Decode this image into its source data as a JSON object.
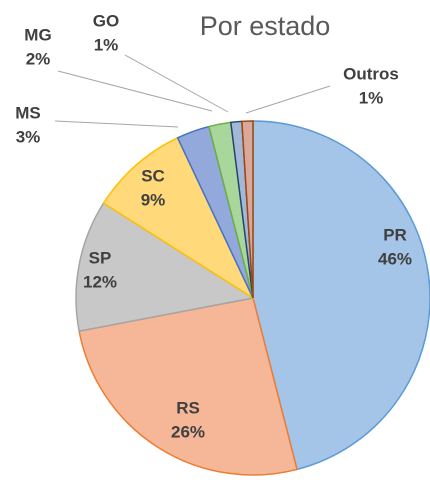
{
  "chart_data": {
    "type": "pie",
    "title": "Por estado",
    "categories": [
      "PR",
      "RS",
      "SP",
      "SC",
      "MS",
      "MG",
      "GO",
      "Outros"
    ],
    "values": [
      46,
      26,
      12,
      9,
      3,
      2,
      1,
      1
    ],
    "value_labels": [
      "46%",
      "26%",
      "12%",
      "9%",
      "3%",
      "2%",
      "1%",
      "1%"
    ],
    "colors": [
      "#a4c4e8",
      "#f6b799",
      "#c8c8c8",
      "#ffd97a",
      "#93a9dc",
      "#a9d69a",
      "#a3b8d6",
      "#d9a89b"
    ],
    "edge_colors": [
      "#5b9bd5",
      "#ed7d31",
      "#a5a5a5",
      "#ffc000",
      "#4472c4",
      "#70ad47",
      "#264478",
      "#9e480e"
    ]
  }
}
